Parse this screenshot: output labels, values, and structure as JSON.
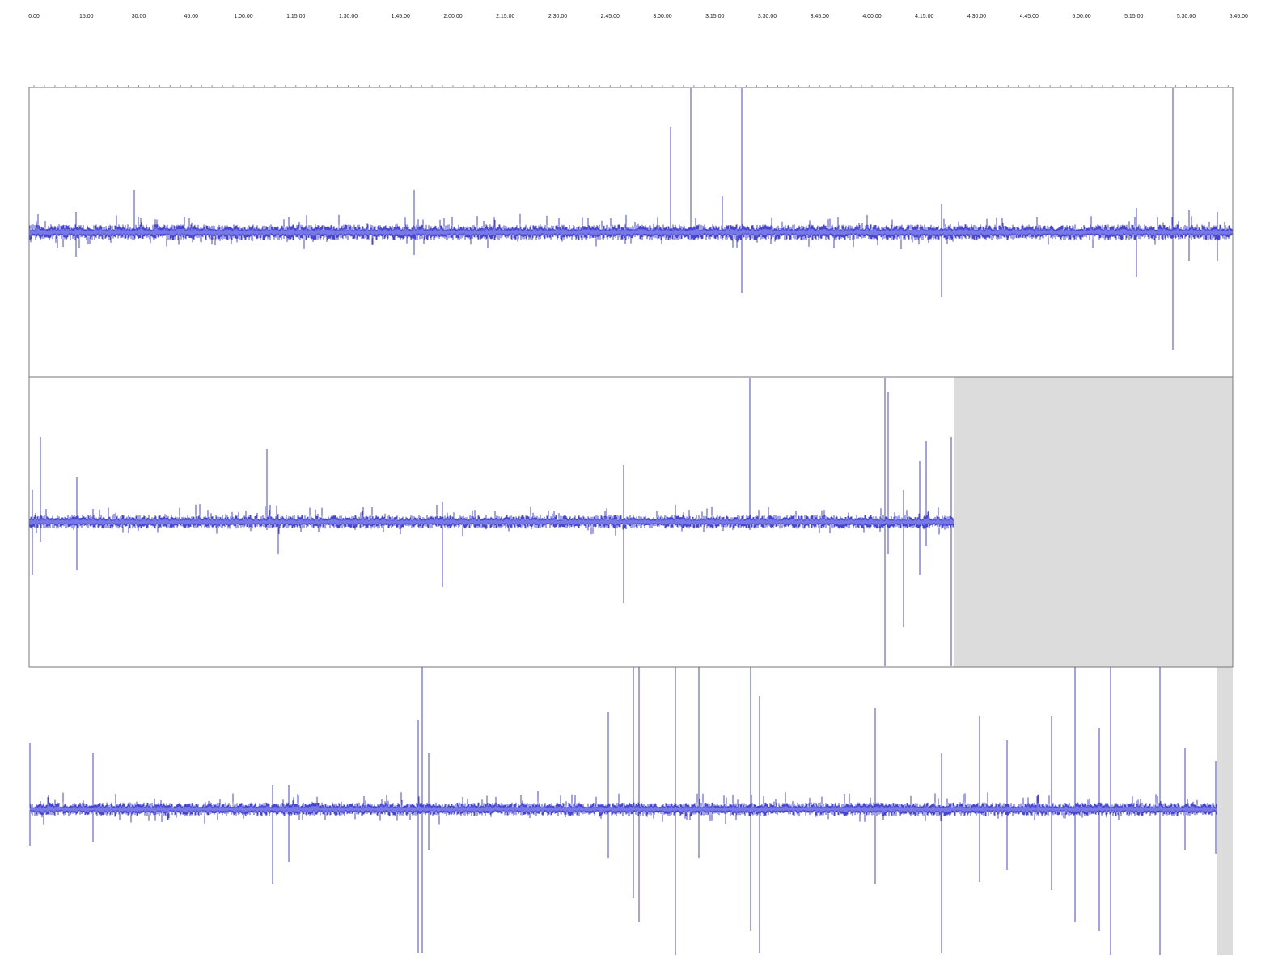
{
  "timeline": {
    "labels": [
      "0:00",
      "15:00",
      "30:00",
      "45:00",
      "1:00:00",
      "1:15:00",
      "1:30:00",
      "1:45:00",
      "2:00:00",
      "2:15:00",
      "2:30:00",
      "2:45:00",
      "3:00:00",
      "3:15:00",
      "3:30:00",
      "3:45:00",
      "4:00:00",
      "4:15:00",
      "4:30:00",
      "4:45:00",
      "5:00:00",
      "5:15:00",
      "5:30:00",
      "5:45:00"
    ]
  }
}
